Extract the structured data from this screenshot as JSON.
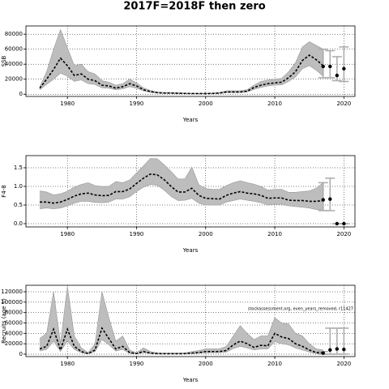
{
  "title": "2017F=2018F then zero",
  "chart_data": [
    {
      "type": "line",
      "ylabel": "SSB",
      "xlabel": "Years",
      "grid": true,
      "xlim": [
        1974,
        2021.6
      ],
      "xticks": [
        1980,
        1990,
        2000,
        2010,
        2020
      ],
      "ylim": [
        -3000,
        91000
      ],
      "yticks": [
        0,
        20000,
        40000,
        60000,
        80000
      ],
      "line_color": "#000000",
      "band_color": "#bdbdbd",
      "bar_color": "#aaaaaa",
      "x": [
        1976,
        1977,
        1978,
        1979,
        1980,
        1981,
        1982,
        1983,
        1984,
        1985,
        1986,
        1987,
        1988,
        1989,
        1990,
        1991,
        1992,
        1993,
        1994,
        1995,
        1996,
        1997,
        1998,
        1999,
        2000,
        2001,
        2002,
        2003,
        2004,
        2005,
        2006,
        2007,
        2008,
        2009,
        2010,
        2011,
        2012,
        2013,
        2014,
        2015,
        2016,
        2017
      ],
      "values": [
        8000,
        20000,
        33000,
        48000,
        38000,
        25000,
        27000,
        20000,
        18000,
        12000,
        11000,
        8000,
        10000,
        14000,
        11000,
        6000,
        3500,
        2000,
        1500,
        1500,
        1200,
        1000,
        800,
        800,
        800,
        1000,
        1500,
        3000,
        3000,
        3000,
        4000,
        9000,
        12000,
        14000,
        15000,
        16000,
        22000,
        30000,
        45000,
        52000,
        46000,
        38000
      ],
      "lower": [
        6000,
        13000,
        20000,
        28000,
        24000,
        17000,
        19000,
        14000,
        13000,
        8500,
        8000,
        6000,
        7000,
        10000,
        8000,
        4500,
        2500,
        1500,
        1100,
        1100,
        900,
        700,
        600,
        600,
        600,
        700,
        1000,
        2000,
        2000,
        2000,
        3000,
        6500,
        9000,
        11000,
        12000,
        12500,
        17000,
        23000,
        34000,
        38000,
        32000,
        24000
      ],
      "upper": [
        10000,
        30000,
        60000,
        86000,
        62000,
        38000,
        40000,
        30000,
        27000,
        18000,
        16000,
        12000,
        14000,
        20000,
        15000,
        8500,
        5000,
        3000,
        2200,
        2200,
        1800,
        1500,
        1200,
        1200,
        1200,
        1500,
        2200,
        4500,
        4500,
        4500,
        6000,
        12000,
        17000,
        19000,
        20000,
        21000,
        30000,
        42000,
        63000,
        70000,
        65000,
        60000
      ],
      "proj_x": [
        2017,
        2018,
        2019,
        2020
      ],
      "proj_values": [
        37000,
        37000,
        25000,
        34000
      ],
      "proj_lower": [
        22000,
        22000,
        18000,
        17000
      ],
      "proj_upper": [
        60000,
        58000,
        50000,
        63000
      ]
    },
    {
      "type": "line",
      "ylabel": "F4-8",
      "xlabel": "Years",
      "grid": true,
      "xlim": [
        1974,
        2021.6
      ],
      "xticks": [
        1980,
        1990,
        2000,
        2010,
        2020
      ],
      "ylim": [
        -0.087,
        1.826
      ],
      "yticks": [
        {
          "value": 0,
          "label": "0.0"
        },
        0.5,
        {
          "value": 1,
          "label": "1.0"
        },
        1.5
      ],
      "line_color": "#000000",
      "band_color": "#bdbdbd",
      "bar_color": "#aaaaaa",
      "x": [
        1976,
        1977,
        1978,
        1979,
        1980,
        1981,
        1982,
        1983,
        1984,
        1985,
        1986,
        1987,
        1988,
        1989,
        1990,
        1991,
        1992,
        1993,
        1994,
        1995,
        1996,
        1997,
        1998,
        1999,
        2000,
        2001,
        2002,
        2003,
        2004,
        2005,
        2006,
        2007,
        2008,
        2009,
        2010,
        2011,
        2012,
        2013,
        2014,
        2015,
        2016,
        2017
      ],
      "values": [
        0.58,
        0.58,
        0.55,
        0.58,
        0.65,
        0.74,
        0.8,
        0.82,
        0.77,
        0.75,
        0.76,
        0.86,
        0.86,
        0.93,
        1.08,
        1.22,
        1.33,
        1.31,
        1.18,
        1.0,
        0.85,
        0.85,
        0.95,
        0.76,
        0.68,
        0.67,
        0.66,
        0.76,
        0.82,
        0.86,
        0.82,
        0.8,
        0.76,
        0.68,
        0.69,
        0.69,
        0.63,
        0.62,
        0.62,
        0.6,
        0.6,
        0.62
      ],
      "lower": [
        0.4,
        0.42,
        0.4,
        0.42,
        0.48,
        0.55,
        0.6,
        0.6,
        0.57,
        0.56,
        0.58,
        0.66,
        0.66,
        0.72,
        0.86,
        0.98,
        1.05,
        1.03,
        0.9,
        0.73,
        0.62,
        0.63,
        0.68,
        0.55,
        0.5,
        0.5,
        0.5,
        0.58,
        0.62,
        0.66,
        0.63,
        0.6,
        0.56,
        0.5,
        0.52,
        0.52,
        0.48,
        0.46,
        0.44,
        0.42,
        0.38,
        0.36
      ],
      "upper": [
        0.88,
        0.85,
        0.77,
        0.8,
        0.87,
        0.98,
        1.05,
        1.1,
        1.02,
        1.0,
        1.0,
        1.13,
        1.1,
        1.17,
        1.36,
        1.55,
        1.75,
        1.74,
        1.58,
        1.4,
        1.2,
        1.2,
        1.52,
        1.05,
        0.94,
        0.92,
        0.92,
        1.02,
        1.1,
        1.15,
        1.1,
        1.06,
        1.0,
        0.9,
        0.92,
        0.92,
        0.84,
        0.84,
        0.86,
        0.88,
        0.95,
        1.1
      ],
      "proj_x": [
        2017,
        2018,
        2019,
        2020
      ],
      "proj_values": [
        0.64,
        0.66,
        0,
        0
      ],
      "proj_lower": [
        0.35,
        0.35,
        0,
        0
      ],
      "proj_upper": [
        1.1,
        1.22,
        0,
        0
      ]
    },
    {
      "type": "line",
      "ylabel": "Recruits (age 1)",
      "xlabel": "Years",
      "grid": true,
      "annotation": "stockassessment.org, even_years_removed, r11427",
      "xlim": [
        1974,
        2021.6
      ],
      "xticks": [
        1980,
        1990,
        2000,
        2010,
        2020
      ],
      "ylim": [
        -4700,
        132500
      ],
      "yticks": [
        0,
        20000,
        40000,
        60000,
        80000,
        100000,
        120000
      ],
      "line_color": "#000000",
      "band_color": "#bdbdbd",
      "bar_color": "#aaaaaa",
      "x": [
        1976,
        1977,
        1978,
        1979,
        1980,
        1981,
        1982,
        1983,
        1984,
        1985,
        1986,
        1987,
        1988,
        1989,
        1990,
        1991,
        1992,
        1993,
        1994,
        1995,
        1996,
        1997,
        1998,
        1999,
        2000,
        2001,
        2002,
        2003,
        2004,
        2005,
        2006,
        2007,
        2008,
        2009,
        2010,
        2011,
        2012,
        2013,
        2014,
        2015,
        2016,
        2017
      ],
      "values": [
        10000,
        15000,
        48000,
        8000,
        48000,
        15000,
        5000,
        1000,
        8000,
        50000,
        30000,
        10000,
        15000,
        3000,
        1000,
        5000,
        2000,
        1000,
        800,
        800,
        800,
        1000,
        2000,
        3000,
        5000,
        5000,
        5000,
        7000,
        18000,
        25000,
        20000,
        13000,
        17000,
        16000,
        40000,
        33000,
        30000,
        20000,
        15000,
        8000,
        3000,
        2000
      ],
      "lower": [
        6000,
        9000,
        25000,
        5000,
        25000,
        9000,
        3000,
        500,
        5000,
        28000,
        18000,
        6000,
        9000,
        1800,
        600,
        3000,
        1200,
        600,
        500,
        500,
        500,
        600,
        1200,
        1800,
        3000,
        3000,
        3000,
        4000,
        11000,
        15000,
        12000,
        8000,
        10000,
        10000,
        24000,
        20000,
        18000,
        12000,
        8000,
        4000,
        1000,
        500
      ],
      "upper": [
        30000,
        40000,
        120000,
        20000,
        130000,
        35000,
        12000,
        3000,
        20000,
        120000,
        70000,
        25000,
        35000,
        8000,
        2500,
        12000,
        5000,
        2500,
        2000,
        2000,
        2000,
        2500,
        5000,
        7000,
        10000,
        10000,
        10000,
        15000,
        35000,
        55000,
        40000,
        28000,
        35000,
        35000,
        70000,
        60000,
        58000,
        40000,
        35000,
        20000,
        10000,
        8000
      ],
      "proj_x": [
        2017,
        2018,
        2019,
        2020
      ],
      "proj_values": [
        2000,
        8000,
        10000,
        9000
      ],
      "proj_lower": [
        0,
        0,
        0,
        0
      ],
      "proj_upper": [
        5000,
        50000,
        50000,
        50000
      ]
    }
  ]
}
